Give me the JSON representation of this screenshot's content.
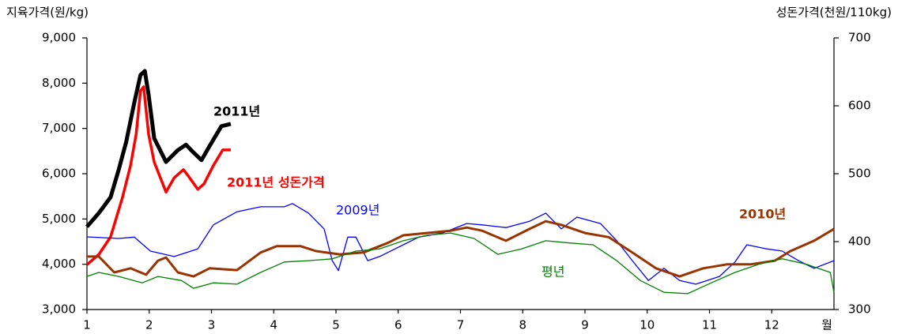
{
  "chart_data": {
    "type": "line",
    "y_label": "지육가격(원/kg)",
    "y2_label": "성돈가격(천원/110kg)",
    "x_unit_label": "월",
    "xlim": [
      1,
      13
    ],
    "xticks": [
      1,
      2,
      3,
      4,
      5,
      6,
      7,
      8,
      9,
      10,
      11,
      12
    ],
    "ylim": [
      3000,
      9000
    ],
    "yticks": [
      {
        "value": 3000,
        "label": "3,000"
      },
      {
        "value": 4000,
        "label": "4,000"
      },
      {
        "value": 5000,
        "label": "5,000"
      },
      {
        "value": 6000,
        "label": "6,000"
      },
      {
        "value": 7000,
        "label": "7,000"
      },
      {
        "value": 8000,
        "label": "8,000"
      },
      {
        "value": 9000,
        "label": "9,000"
      }
    ],
    "y2lim": [
      300,
      700
    ],
    "y2ticks": [
      300,
      400,
      500,
      600,
      700
    ],
    "series": [
      {
        "name": "2011년",
        "color": "#000000",
        "x": [
          1.0,
          1.19,
          1.38,
          1.51,
          1.63,
          1.76,
          1.86,
          1.93,
          1.99,
          2.08,
          2.27,
          2.46,
          2.59,
          2.71,
          2.84,
          2.97,
          3.16,
          3.31
        ],
        "values": [
          4830,
          5130,
          5480,
          6090,
          6700,
          7570,
          8180,
          8270,
          7740,
          6780,
          6260,
          6520,
          6640,
          6470,
          6300,
          6610,
          7050,
          7100
        ]
      },
      {
        "name": "2011년 성돈가격",
        "color": "#ff0000",
        "axis": "y2",
        "x": [
          1.0,
          1.19,
          1.38,
          1.57,
          1.7,
          1.79,
          1.86,
          1.91,
          1.99,
          2.08,
          2.27,
          2.4,
          2.55,
          2.65,
          2.78,
          2.88,
          3.03,
          3.18,
          3.31
        ],
        "values": [
          366,
          381,
          407,
          465,
          512,
          558,
          622,
          628,
          558,
          517,
          473,
          494,
          506,
          494,
          477,
          485,
          512,
          535,
          535
        ]
      },
      {
        "name": "2009년",
        "color": "#0000ff",
        "x": [
          1.0,
          1.51,
          1.76,
          2.02,
          2.4,
          2.78,
          3.03,
          3.41,
          3.79,
          4.17,
          4.3,
          4.56,
          4.81,
          4.94,
          5.04,
          5.19,
          5.32,
          5.51,
          5.7,
          5.95,
          6.33,
          6.71,
          7.1,
          7.35,
          7.73,
          8.11,
          8.37,
          8.62,
          8.87,
          9.25,
          9.51,
          9.76,
          10.02,
          10.27,
          10.52,
          10.78,
          11.16,
          11.41,
          11.6,
          11.92,
          12.17,
          12.43,
          12.68,
          13.0
        ],
        "values": [
          4605,
          4570,
          4600,
          4290,
          4170,
          4340,
          4870,
          5160,
          5270,
          5270,
          5340,
          5130,
          4780,
          4080,
          3860,
          4600,
          4600,
          4080,
          4170,
          4340,
          4600,
          4690,
          4900,
          4870,
          4810,
          4950,
          5130,
          4780,
          5040,
          4900,
          4520,
          4080,
          3640,
          3910,
          3640,
          3560,
          3730,
          4050,
          4430,
          4340,
          4290,
          4080,
          3910,
          4080
        ]
      },
      {
        "name": "2010년",
        "color": "#993300",
        "x": [
          1.0,
          1.19,
          1.44,
          1.7,
          1.95,
          2.14,
          2.27,
          2.46,
          2.71,
          2.97,
          3.41,
          3.79,
          4.05,
          4.43,
          4.68,
          5.06,
          5.44,
          5.83,
          6.08,
          6.46,
          6.84,
          7.1,
          7.35,
          7.73,
          8.11,
          8.37,
          8.62,
          9.0,
          9.38,
          9.76,
          10.14,
          10.52,
          10.9,
          11.29,
          11.67,
          12.05,
          12.3,
          12.68,
          13.0
        ],
        "values": [
          4170,
          4170,
          3820,
          3910,
          3770,
          4080,
          4150,
          3820,
          3730,
          3910,
          3870,
          4260,
          4400,
          4400,
          4290,
          4220,
          4260,
          4470,
          4640,
          4690,
          4740,
          4810,
          4740,
          4520,
          4780,
          4950,
          4870,
          4690,
          4600,
          4260,
          3910,
          3730,
          3910,
          4000,
          4000,
          4080,
          4290,
          4520,
          4780
        ]
      },
      {
        "name": "평년",
        "color": "#008000",
        "x": [
          1.0,
          1.19,
          1.51,
          1.89,
          2.14,
          2.52,
          2.71,
          3.03,
          3.41,
          3.79,
          4.17,
          4.56,
          4.94,
          5.32,
          5.7,
          6.08,
          6.46,
          6.84,
          7.22,
          7.6,
          7.98,
          8.37,
          8.75,
          9.13,
          9.51,
          9.89,
          10.27,
          10.65,
          11.03,
          11.41,
          11.79,
          12.17,
          12.56,
          12.94,
          13.0
        ],
        "values": [
          3730,
          3820,
          3730,
          3590,
          3730,
          3640,
          3470,
          3590,
          3560,
          3820,
          4050,
          4080,
          4120,
          4290,
          4340,
          4520,
          4640,
          4690,
          4570,
          4220,
          4340,
          4520,
          4470,
          4430,
          4080,
          3640,
          3380,
          3350,
          3590,
          3820,
          4000,
          4120,
          4000,
          3820,
          3380
        ]
      }
    ]
  }
}
